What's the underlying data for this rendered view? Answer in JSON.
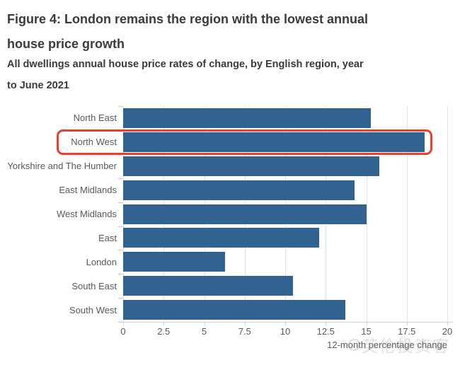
{
  "header": {
    "title_lines": [
      "Figure 4: London remains the region with the lowest annual",
      "house price growth"
    ],
    "subtitle_lines": [
      "All dwellings annual house price rates of change, by English region, year",
      "to June 2021"
    ]
  },
  "chart_data": {
    "type": "bar",
    "orientation": "horizontal",
    "title": "Figure 4: London remains the region with the lowest annual house price growth",
    "subtitle": "All dwellings annual house price rates of change, by English region, year to June 2021",
    "categories": [
      "North East",
      "North West",
      "Yorkshire and The Humber",
      "East Midlands",
      "West Midlands",
      "East",
      "London",
      "South East",
      "South West"
    ],
    "values": [
      15.3,
      18.6,
      15.8,
      14.3,
      15.0,
      12.1,
      6.3,
      10.5,
      13.7
    ],
    "xlabel": "12-month percentage change",
    "xlim": [
      0,
      20
    ],
    "xticks": [
      0,
      2.5,
      5,
      7.5,
      10,
      12.5,
      15,
      17.5,
      20
    ],
    "grid": "vertical",
    "legend": "none",
    "bar_color": "#32628f",
    "highlight": {
      "category": "North West",
      "color": "#e8402d"
    }
  },
  "watermark": {
    "text": "英伦投资客"
  }
}
